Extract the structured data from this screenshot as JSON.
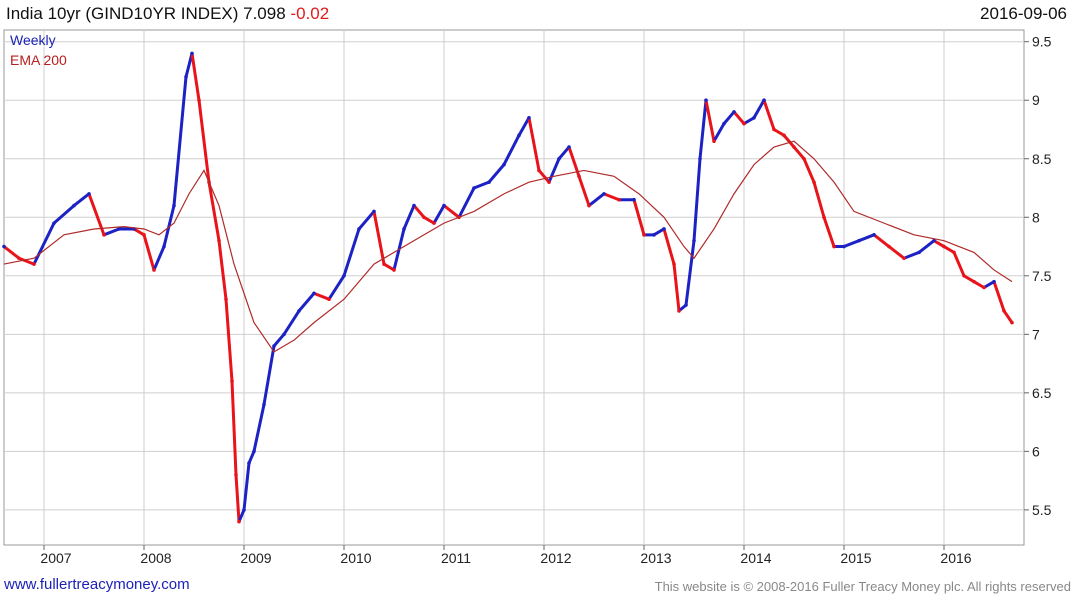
{
  "header": {
    "title": "India 10yr (GIND10YR INDEX) 7.098",
    "change": "-0.02",
    "date": "2016-09-06"
  },
  "legend": {
    "weekly": "Weekly",
    "ema": "EMA 200"
  },
  "footer": {
    "link": "www.fullertreacymoney.com",
    "copyright": "This website is © 2008-2016 Fuller Treacy Money plc. All rights reserved"
  },
  "colors": {
    "up": "#1c22c4",
    "down": "#e8141a",
    "ema": "#b02a2a",
    "grid": "#cfcfcf"
  },
  "chart_data": {
    "type": "line",
    "ylim": [
      5.2,
      9.6
    ],
    "xlim": [
      2006.6,
      2016.8
    ],
    "yticks": [
      "5.5",
      "6",
      "6.5",
      "7",
      "7.5",
      "8",
      "8.5",
      "9",
      "9.5"
    ],
    "xticks": [
      "2007",
      "2008",
      "2009",
      "2010",
      "2011",
      "2012",
      "2013",
      "2014",
      "2015",
      "2016"
    ],
    "grid": true,
    "series": [
      {
        "name": "Weekly",
        "x": [
          2006.6,
          2006.75,
          2006.9,
          2007.1,
          2007.3,
          2007.45,
          2007.6,
          2007.75,
          2007.9,
          2008.0,
          2008.1,
          2008.2,
          2008.3,
          2008.42,
          2008.48,
          2008.55,
          2008.65,
          2008.75,
          2008.82,
          2008.88,
          2008.92,
          2008.95,
          2009.0,
          2009.05,
          2009.1,
          2009.2,
          2009.3,
          2009.4,
          2009.55,
          2009.7,
          2009.85,
          2010.0,
          2010.15,
          2010.3,
          2010.4,
          2010.5,
          2010.6,
          2010.7,
          2010.8,
          2010.9,
          2011.0,
          2011.15,
          2011.3,
          2011.45,
          2011.6,
          2011.75,
          2011.85,
          2011.95,
          2012.05,
          2012.15,
          2012.25,
          2012.35,
          2012.45,
          2012.6,
          2012.75,
          2012.9,
          2013.0,
          2013.1,
          2013.2,
          2013.3,
          2013.35,
          2013.42,
          2013.5,
          2013.56,
          2013.62,
          2013.7,
          2013.8,
          2013.9,
          2014.0,
          2014.1,
          2014.2,
          2014.3,
          2014.4,
          2014.5,
          2014.6,
          2014.7,
          2014.8,
          2014.9,
          2015.0,
          2015.15,
          2015.3,
          2015.45,
          2015.6,
          2015.75,
          2015.9,
          2016.0,
          2016.1,
          2016.2,
          2016.3,
          2016.4,
          2016.5,
          2016.6,
          2016.68
        ],
        "values": [
          7.75,
          7.65,
          7.6,
          7.95,
          8.1,
          8.2,
          7.85,
          7.9,
          7.9,
          7.85,
          7.55,
          7.75,
          8.1,
          9.2,
          9.4,
          9.0,
          8.3,
          7.8,
          7.3,
          6.6,
          5.8,
          5.4,
          5.5,
          5.9,
          6.0,
          6.4,
          6.9,
          7.0,
          7.2,
          7.35,
          7.3,
          7.5,
          7.9,
          8.05,
          7.6,
          7.55,
          7.9,
          8.1,
          8.0,
          7.95,
          8.1,
          8.0,
          8.25,
          8.3,
          8.45,
          8.7,
          8.85,
          8.4,
          8.3,
          8.5,
          8.6,
          8.35,
          8.1,
          8.2,
          8.15,
          8.15,
          7.85,
          7.85,
          7.9,
          7.6,
          7.2,
          7.25,
          7.8,
          8.5,
          9.0,
          8.65,
          8.8,
          8.9,
          8.8,
          8.85,
          9.0,
          8.75,
          8.7,
          8.6,
          8.5,
          8.3,
          8.0,
          7.75,
          7.75,
          7.8,
          7.85,
          7.75,
          7.65,
          7.7,
          7.8,
          7.75,
          7.7,
          7.5,
          7.45,
          7.4,
          7.45,
          7.2,
          7.1
        ]
      },
      {
        "name": "EMA 200",
        "x": [
          2006.6,
          2006.9,
          2007.2,
          2007.5,
          2007.8,
          2008.0,
          2008.15,
          2008.3,
          2008.45,
          2008.6,
          2008.75,
          2008.9,
          2009.1,
          2009.3,
          2009.5,
          2009.7,
          2010.0,
          2010.3,
          2010.6,
          2011.0,
          2011.3,
          2011.6,
          2011.85,
          2012.1,
          2012.4,
          2012.7,
          2012.95,
          2013.2,
          2013.4,
          2013.5,
          2013.7,
          2013.9,
          2014.1,
          2014.3,
          2014.5,
          2014.7,
          2014.9,
          2015.1,
          2015.4,
          2015.7,
          2016.0,
          2016.3,
          2016.5,
          2016.68
        ],
        "values": [
          7.6,
          7.65,
          7.85,
          7.9,
          7.92,
          7.9,
          7.85,
          7.95,
          8.2,
          8.4,
          8.1,
          7.6,
          7.1,
          6.85,
          6.95,
          7.1,
          7.3,
          7.6,
          7.75,
          7.95,
          8.05,
          8.2,
          8.3,
          8.35,
          8.4,
          8.35,
          8.2,
          8.0,
          7.75,
          7.65,
          7.9,
          8.2,
          8.45,
          8.6,
          8.65,
          8.5,
          8.3,
          8.05,
          7.95,
          7.85,
          7.8,
          7.7,
          7.55,
          7.45
        ]
      }
    ]
  }
}
